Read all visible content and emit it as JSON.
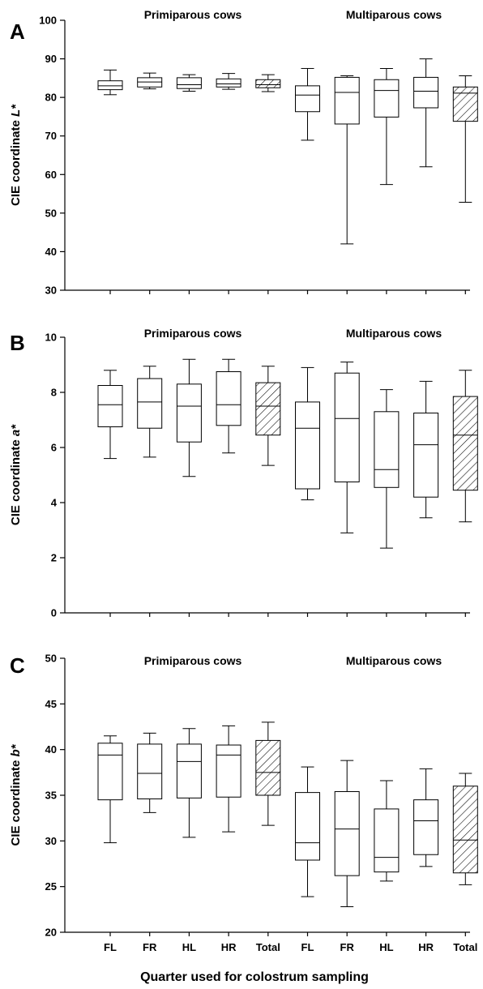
{
  "figure": {
    "xlabel": "Quarter used for colostrum sampling",
    "categories": [
      "FL",
      "FR",
      "HL",
      "HR",
      "Total",
      "FL",
      "FR",
      "HL",
      "HR",
      "Total"
    ]
  },
  "chart_data": [
    {
      "type": "box",
      "panel": "A",
      "ylabel_prefix": "CIE coordinate ",
      "ylabel_var": "L*",
      "group_labels": [
        "Primiparous cows",
        "Multiparous cows"
      ],
      "ylim": [
        30,
        100
      ],
      "yticks": [
        30,
        40,
        50,
        60,
        70,
        80,
        90,
        100
      ],
      "categories": [
        "FL",
        "FR",
        "HL",
        "HR",
        "Total",
        "FL",
        "FR",
        "HL",
        "HR",
        "Total"
      ],
      "hatched": [
        false,
        false,
        false,
        false,
        true,
        false,
        false,
        false,
        false,
        true
      ],
      "boxes": [
        {
          "min": 80.7,
          "q1": 82.0,
          "median": 83.0,
          "q3": 84.3,
          "max": 87.1
        },
        {
          "min": 82.2,
          "q1": 82.7,
          "median": 84.0,
          "q3": 85.1,
          "max": 86.3
        },
        {
          "min": 81.6,
          "q1": 82.3,
          "median": 83.3,
          "q3": 85.1,
          "max": 85.9
        },
        {
          "min": 82.1,
          "q1": 82.7,
          "median": 83.5,
          "q3": 84.8,
          "max": 86.2
        },
        {
          "min": 81.5,
          "q1": 82.5,
          "median": 83.3,
          "q3": 84.6,
          "max": 85.9
        },
        {
          "min": 68.9,
          "q1": 76.3,
          "median": 80.6,
          "q3": 83.0,
          "max": 87.5
        },
        {
          "min": 42.0,
          "q1": 73.1,
          "median": 81.3,
          "q3": 85.2,
          "max": 85.6
        },
        {
          "min": 57.4,
          "q1": 74.9,
          "median": 81.8,
          "q3": 84.6,
          "max": 87.5
        },
        {
          "min": 62.0,
          "q1": 77.3,
          "median": 81.6,
          "q3": 85.2,
          "max": 90.0
        },
        {
          "min": 52.8,
          "q1": 73.8,
          "median": 81.1,
          "q3": 82.7,
          "max": 85.6
        }
      ]
    },
    {
      "type": "box",
      "panel": "B",
      "ylabel_prefix": "CIE coordinate ",
      "ylabel_var": "a*",
      "group_labels": [
        "Primiparous cows",
        "Multiparous cows"
      ],
      "ylim": [
        0,
        10
      ],
      "yticks": [
        0,
        2,
        4,
        6,
        8,
        10
      ],
      "categories": [
        "FL",
        "FR",
        "HL",
        "HR",
        "Total",
        "FL",
        "FR",
        "HL",
        "HR",
        "Total"
      ],
      "hatched": [
        false,
        false,
        false,
        false,
        true,
        false,
        false,
        false,
        false,
        true
      ],
      "boxes": [
        {
          "min": 5.6,
          "q1": 6.75,
          "median": 7.55,
          "q3": 8.25,
          "max": 8.8
        },
        {
          "min": 5.65,
          "q1": 6.7,
          "median": 7.65,
          "q3": 8.5,
          "max": 8.95
        },
        {
          "min": 4.95,
          "q1": 6.2,
          "median": 7.5,
          "q3": 8.3,
          "max": 9.2
        },
        {
          "min": 5.8,
          "q1": 6.8,
          "median": 7.55,
          "q3": 8.75,
          "max": 9.2
        },
        {
          "min": 5.35,
          "q1": 6.45,
          "median": 7.5,
          "q3": 8.35,
          "max": 8.95
        },
        {
          "min": 4.1,
          "q1": 4.5,
          "median": 6.7,
          "q3": 7.65,
          "max": 8.9
        },
        {
          "min": 2.9,
          "q1": 4.75,
          "median": 7.05,
          "q3": 8.7,
          "max": 9.1
        },
        {
          "min": 2.35,
          "q1": 4.55,
          "median": 5.2,
          "q3": 7.3,
          "max": 8.1
        },
        {
          "min": 3.45,
          "q1": 4.2,
          "median": 6.1,
          "q3": 7.25,
          "max": 8.4
        },
        {
          "min": 3.3,
          "q1": 4.45,
          "median": 6.45,
          "q3": 7.85,
          "max": 8.8
        }
      ]
    },
    {
      "type": "box",
      "panel": "C",
      "ylabel_prefix": "CIE coordinate ",
      "ylabel_var": "b*",
      "group_labels": [
        "Primiparous cows",
        "Multiparous cows"
      ],
      "ylim": [
        20,
        50
      ],
      "yticks": [
        20,
        25,
        30,
        35,
        40,
        45,
        50
      ],
      "categories": [
        "FL",
        "FR",
        "HL",
        "HR",
        "Total",
        "FL",
        "FR",
        "HL",
        "HR",
        "Total"
      ],
      "hatched": [
        false,
        false,
        false,
        false,
        true,
        false,
        false,
        false,
        false,
        true
      ],
      "boxes": [
        {
          "min": 29.8,
          "q1": 34.5,
          "median": 39.4,
          "q3": 40.7,
          "max": 41.5
        },
        {
          "min": 33.1,
          "q1": 34.6,
          "median": 37.4,
          "q3": 40.6,
          "max": 41.8
        },
        {
          "min": 30.4,
          "q1": 34.7,
          "median": 38.7,
          "q3": 40.6,
          "max": 42.3
        },
        {
          "min": 31.0,
          "q1": 34.8,
          "median": 39.4,
          "q3": 40.5,
          "max": 42.6
        },
        {
          "min": 31.7,
          "q1": 35.0,
          "median": 37.5,
          "q3": 41.0,
          "max": 43.0
        },
        {
          "min": 23.9,
          "q1": 27.9,
          "median": 29.8,
          "q3": 35.3,
          "max": 38.1
        },
        {
          "min": 22.8,
          "q1": 26.2,
          "median": 31.3,
          "q3": 35.4,
          "max": 38.8
        },
        {
          "min": 25.6,
          "q1": 26.6,
          "median": 28.2,
          "q3": 33.5,
          "max": 36.6
        },
        {
          "min": 27.2,
          "q1": 28.5,
          "median": 32.2,
          "q3": 34.5,
          "max": 37.9
        },
        {
          "min": 25.2,
          "q1": 26.5,
          "median": 30.1,
          "q3": 36.0,
          "max": 37.4
        }
      ]
    }
  ]
}
